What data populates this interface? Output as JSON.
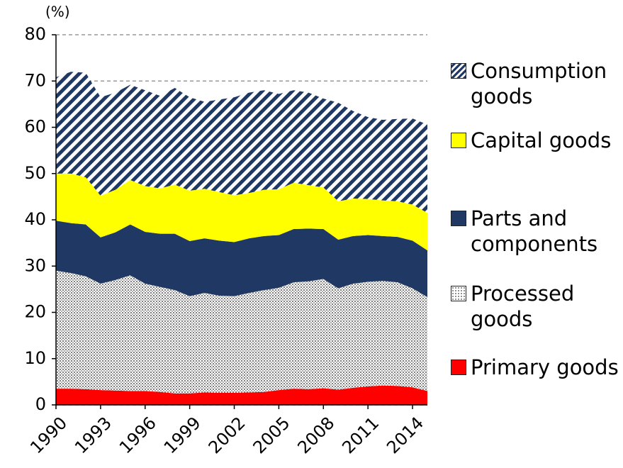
{
  "chart_data": {
    "type": "stacked_area",
    "y_label": "(%)",
    "x": [
      1990,
      1991,
      1992,
      1993,
      1994,
      1995,
      1996,
      1997,
      1998,
      1999,
      2000,
      2001,
      2002,
      2003,
      2004,
      2005,
      2006,
      2007,
      2008,
      2009,
      2010,
      2011,
      2012,
      2013,
      2014,
      2015
    ],
    "xlim": [
      1990,
      2015
    ],
    "xticks": [
      1990,
      1993,
      1996,
      1999,
      2002,
      2005,
      2008,
      2011,
      2014
    ],
    "ylim": [
      0,
      80
    ],
    "yticks": [
      0,
      10,
      20,
      30,
      40,
      50,
      60,
      70,
      80
    ],
    "grid": true,
    "series": [
      {
        "name": "Primary goods",
        "color": "#ff0000",
        "pattern": "solid",
        "values": [
          3.5,
          3.5,
          3.4,
          3.2,
          3.1,
          3,
          3,
          2.8,
          2.5,
          2.5,
          2.7,
          2.6,
          2.6,
          2.7,
          2.8,
          3.2,
          3.5,
          3.4,
          3.6,
          3.3,
          3.7,
          4,
          4.2,
          4.1,
          3.8,
          3
        ]
      },
      {
        "name": "Processed goods",
        "color": "#808080",
        "pattern": "dots",
        "values": [
          25.5,
          25,
          24.4,
          23,
          23.9,
          25,
          23.2,
          22.7,
          22.3,
          21,
          21.5,
          21,
          20.9,
          21.5,
          22,
          22.1,
          23,
          23.3,
          23.6,
          21.9,
          22.5,
          22.6,
          22.6,
          22.4,
          21.4,
          20.3
        ]
      },
      {
        "name": "Parts and components",
        "color": "#1f3864",
        "pattern": "solid",
        "values": [
          10.8,
          10.8,
          11.2,
          10,
          10.3,
          11,
          11.2,
          11.5,
          12.2,
          11.9,
          11.8,
          11.9,
          11.7,
          11.8,
          11.7,
          11.4,
          11.5,
          11.4,
          10.8,
          10.5,
          10.3,
          10.1,
          9.7,
          9.8,
          10.3,
          10.1
        ]
      },
      {
        "name": "Capital goods",
        "color": "#ffff00",
        "pattern": "solid",
        "values": [
          10.2,
          10.7,
          10.2,
          9,
          9.2,
          9.6,
          9.9,
          9.8,
          10.6,
          10.9,
          10.7,
          10.5,
          10.1,
          9.8,
          10,
          9.9,
          10,
          9.4,
          9,
          8.3,
          8.1,
          7.8,
          7.7,
          7.7,
          7.8,
          8.1
        ]
      },
      {
        "name": "Consumption goods",
        "color": "#1f3864",
        "pattern": "diagonal",
        "values": [
          20.8,
          22,
          22.6,
          21.3,
          21,
          20.6,
          20.7,
          20,
          20.9,
          20.2,
          18.8,
          20,
          21.2,
          21.7,
          21.5,
          20.6,
          20,
          20,
          19.2,
          21.3,
          18.9,
          17.7,
          17.4,
          17.8,
          18.6,
          19.1
        ]
      }
    ]
  }
}
